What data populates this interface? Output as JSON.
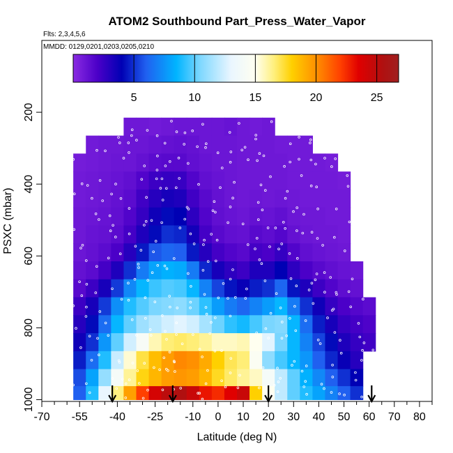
{
  "chart_data": {
    "type": "heatmap",
    "title": "ATOM2 Southbound Part_Press_Water_Vapor",
    "subtitle_flights": "Flts: 2,3,4,5,6",
    "subtitle_dates": "MMDD: 0129,0201,0203,0205,0210",
    "xlabel": "Latitude (deg N)",
    "ylabel": "PSXC (mbar)",
    "xlim": [
      -70,
      85
    ],
    "ylim": [
      1005,
      0
    ],
    "x_ticks": [
      -70,
      -55,
      -40,
      -25,
      -10,
      0,
      10,
      20,
      30,
      40,
      50,
      60,
      70,
      80
    ],
    "x_tick_labels": [
      "-70",
      "-55",
      "-40",
      "-25",
      "-10",
      "0",
      "10",
      "20",
      "30",
      "40",
      "50",
      "60",
      "70",
      "80"
    ],
    "x_minor_ticks": [
      -65,
      -60,
      -50,
      -45,
      -35,
      -30,
      -20,
      -15,
      -5,
      5,
      15,
      25,
      35,
      45,
      55,
      65,
      75,
      85
    ],
    "y_ticks": [
      200,
      400,
      600,
      800,
      1000
    ],
    "y_tick_labels": [
      "200",
      "400",
      "600",
      "800",
      "1000"
    ],
    "colorbar": {
      "range": [
        0,
        26.8
      ],
      "ticks": [
        5,
        10,
        15,
        20,
        25
      ],
      "tick_labels": [
        "5",
        "10",
        "15",
        "20",
        "25"
      ],
      "stops": [
        {
          "v": 0,
          "c": "#8a2be2"
        },
        {
          "v": 2,
          "c": "#4b00c8"
        },
        {
          "v": 4,
          "c": "#0000b4"
        },
        {
          "v": 6,
          "c": "#2060f0"
        },
        {
          "v": 8.5,
          "c": "#00b4ff"
        },
        {
          "v": 10.5,
          "c": "#80d8ff"
        },
        {
          "v": 13,
          "c": "#eaf6ff"
        },
        {
          "v": 15,
          "c": "#fffff0"
        },
        {
          "v": 16.5,
          "c": "#fff080"
        },
        {
          "v": 18,
          "c": "#ffd000"
        },
        {
          "v": 20,
          "c": "#ff9000"
        },
        {
          "v": 22,
          "c": "#ff4000"
        },
        {
          "v": 23.5,
          "c": "#e00000"
        },
        {
          "v": 25.5,
          "c": "#b01010"
        },
        {
          "v": 26.8,
          "c": "#a02020"
        }
      ]
    },
    "pressure_bins": [
      240,
      290,
      340,
      390,
      440,
      490,
      540,
      590,
      640,
      690,
      740,
      790,
      840,
      890,
      940,
      985
    ],
    "lat_start": -55,
    "lat_step": 5,
    "values_by_pressure_bin": [
      [
        null,
        null,
        null,
        null,
        0.9,
        0.9,
        0.8,
        0.9,
        1.0,
        1.0,
        1.0,
        1.0,
        1.1,
        0.9,
        0.8,
        0.9,
        null,
        null,
        null,
        null,
        null,
        null,
        null,
        null
      ],
      [
        null,
        0.8,
        0.9,
        0.9,
        1.0,
        1.0,
        1.1,
        1.2,
        1.3,
        1.2,
        1.0,
        1.0,
        1.0,
        0.9,
        0.9,
        0.9,
        0.8,
        0.8,
        0.8,
        null,
        null,
        null,
        null,
        null
      ],
      [
        0.7,
        0.8,
        0.9,
        1.0,
        1.0,
        1.2,
        1.5,
        1.6,
        1.6,
        1.3,
        1.1,
        1.0,
        1.0,
        0.9,
        0.9,
        0.9,
        0.9,
        0.8,
        0.8,
        0.8,
        0.7,
        null,
        null,
        null
      ],
      [
        0.8,
        0.9,
        1.0,
        1.1,
        1.3,
        1.8,
        2.4,
        2.6,
        2.5,
        1.8,
        1.3,
        1.1,
        1.0,
        0.9,
        0.9,
        0.9,
        0.9,
        0.8,
        0.8,
        0.8,
        0.8,
        0.7,
        null,
        null
      ],
      [
        0.8,
        0.9,
        1.0,
        1.2,
        1.5,
        2.3,
        3.0,
        3.4,
        3.2,
        2.3,
        1.6,
        1.2,
        1.0,
        0.9,
        1.0,
        0.9,
        1.0,
        0.9,
        0.8,
        0.8,
        0.8,
        0.8,
        null,
        null
      ],
      [
        0.9,
        1.0,
        1.1,
        1.3,
        1.8,
        2.6,
        3.6,
        4.2,
        4.0,
        2.8,
        1.8,
        1.3,
        1.1,
        1.0,
        1.2,
        1.1,
        1.3,
        1.0,
        0.9,
        0.9,
        0.8,
        0.8,
        null,
        null
      ],
      [
        0.9,
        1.1,
        1.2,
        1.5,
        2.2,
        3.2,
        4.2,
        5.0,
        4.8,
        3.5,
        2.2,
        1.6,
        1.3,
        1.2,
        1.6,
        1.4,
        1.7,
        1.2,
        1.0,
        0.9,
        0.9,
        0.8,
        null,
        null
      ],
      [
        1.0,
        1.2,
        1.5,
        2.0,
        3.0,
        4.5,
        5.8,
        6.2,
        6.0,
        4.5,
        3.0,
        2.2,
        1.8,
        1.6,
        2.2,
        2.0,
        2.6,
        1.8,
        1.3,
        1.1,
        1.0,
        0.9,
        null,
        null
      ],
      [
        1.2,
        1.5,
        2.2,
        3.2,
        5.0,
        6.8,
        8.0,
        8.4,
        8.2,
        6.8,
        4.8,
        3.4,
        2.8,
        2.4,
        3.2,
        3.2,
        4.0,
        2.8,
        2.0,
        1.6,
        1.3,
        1.1,
        1.0,
        null
      ],
      [
        1.6,
        2.4,
        3.4,
        5.2,
        7.2,
        8.6,
        9.4,
        9.8,
        9.6,
        8.6,
        7.0,
        5.4,
        4.4,
        3.8,
        4.6,
        5.0,
        6.2,
        4.4,
        3.2,
        2.4,
        1.8,
        1.4,
        1.2,
        null
      ],
      [
        2.4,
        3.4,
        5.2,
        7.4,
        9.0,
        9.8,
        10.4,
        10.6,
        10.8,
        10.2,
        9.2,
        7.8,
        6.8,
        6.2,
        7.0,
        7.8,
        8.6,
        6.8,
        5.0,
        3.6,
        2.6,
        2.0,
        1.7,
        1.5
      ],
      [
        3.0,
        4.2,
        6.4,
        8.6,
        10.0,
        11.2,
        11.8,
        12.4,
        12.8,
        12.4,
        11.4,
        10.2,
        9.2,
        8.8,
        9.6,
        10.4,
        10.6,
        8.6,
        6.4,
        4.6,
        3.4,
        2.6,
        2.2,
        1.9
      ],
      [
        3.6,
        5.0,
        7.6,
        10.0,
        12.4,
        14.2,
        15.8,
        16.6,
        16.8,
        16.6,
        16.2,
        15.6,
        15.6,
        15.8,
        15.0,
        12.8,
        10.4,
        8.6,
        7.0,
        5.4,
        4.2,
        3.2,
        2.6,
        2.3
      ],
      [
        4.6,
        6.4,
        9.0,
        12.2,
        15.4,
        17.2,
        18.6,
        19.6,
        20.2,
        20.0,
        19.2,
        18.0,
        17.0,
        16.6,
        14.6,
        10.8,
        9.6,
        8.6,
        7.6,
        6.0,
        4.8,
        3.8,
        3.0,
        null
      ],
      [
        5.6,
        8.0,
        11.0,
        14.0,
        16.2,
        17.8,
        18.8,
        19.6,
        19.8,
        19.6,
        18.8,
        17.6,
        16.8,
        16.2,
        15.6,
        14.0,
        12.0,
        10.0,
        8.4,
        7.2,
        6.0,
        5.0,
        4.0,
        null
      ],
      [
        6.0,
        9.0,
        13.0,
        16.5,
        19.5,
        22.0,
        24.0,
        25.0,
        25.5,
        24.5,
        23.0,
        22.5,
        23.5,
        24.5,
        18.0,
        15.0,
        12.0,
        10.0,
        9.0,
        8.0,
        7.0,
        6.0,
        5.0,
        null
      ]
    ],
    "flight_markers_lat": [
      -42,
      -18,
      20,
      61
    ]
  }
}
